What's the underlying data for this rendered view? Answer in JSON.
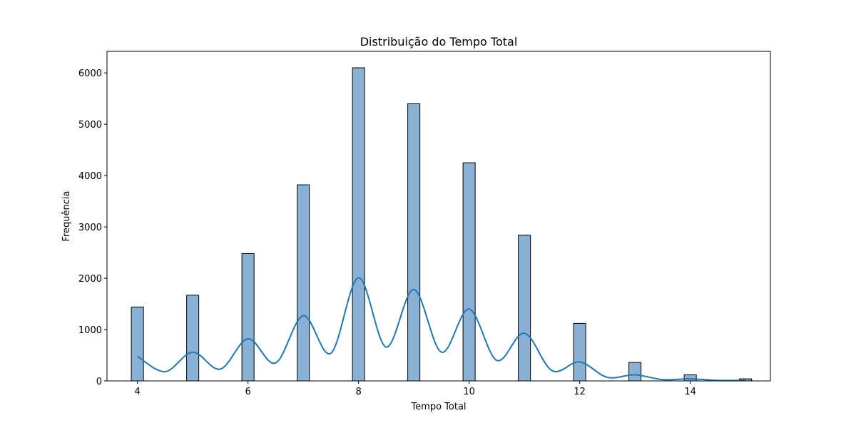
{
  "chart_data": {
    "type": "bar",
    "subtype": "histogram-with-kde",
    "title": "Distribuição do Tempo Total",
    "xlabel": "Tempo Total",
    "ylabel": "Frequência",
    "xlim": [
      3.45,
      15.45
    ],
    "ylim": [
      0,
      6420
    ],
    "x_ticks": [
      4,
      6,
      8,
      10,
      12,
      14
    ],
    "y_ticks": [
      0,
      1000,
      2000,
      3000,
      4000,
      5000,
      6000
    ],
    "bar_width": 0.22,
    "bars": [
      {
        "x": 4,
        "value": 1440
      },
      {
        "x": 5,
        "value": 1670
      },
      {
        "x": 6,
        "value": 2480
      },
      {
        "x": 7,
        "value": 3820
      },
      {
        "x": 8,
        "value": 6100
      },
      {
        "x": 9,
        "value": 5400
      },
      {
        "x": 10,
        "value": 4250
      },
      {
        "x": 11,
        "value": 2840
      },
      {
        "x": 12,
        "value": 1120
      },
      {
        "x": 13,
        "value": 360
      },
      {
        "x": 14,
        "value": 120
      },
      {
        "x": 15,
        "value": 40
      }
    ],
    "kde_peaks": [
      {
        "x": 4,
        "y": 480
      },
      {
        "x": 5,
        "y": 560
      },
      {
        "x": 6,
        "y": 820
      },
      {
        "x": 7,
        "y": 1270
      },
      {
        "x": 8,
        "y": 2010
      },
      {
        "x": 9,
        "y": 1780
      },
      {
        "x": 10,
        "y": 1400
      },
      {
        "x": 11,
        "y": 930
      },
      {
        "x": 12,
        "y": 370
      },
      {
        "x": 13,
        "y": 120
      },
      {
        "x": 14,
        "y": 40
      },
      {
        "x": 15,
        "y": 10
      }
    ],
    "kde_troughs": [
      {
        "x": 4.5,
        "y": 180
      },
      {
        "x": 5.5,
        "y": 230
      },
      {
        "x": 6.5,
        "y": 350
      },
      {
        "x": 7.5,
        "y": 540
      },
      {
        "x": 8.5,
        "y": 660
      },
      {
        "x": 9.5,
        "y": 560
      },
      {
        "x": 10.5,
        "y": 400
      },
      {
        "x": 11.5,
        "y": 200
      },
      {
        "x": 12.5,
        "y": 70
      },
      {
        "x": 13.5,
        "y": 25
      },
      {
        "x": 14.5,
        "y": 10
      }
    ],
    "grid": false,
    "colors": {
      "bar_fill": "#8ab1d4",
      "bar_edge": "#000000",
      "kde_line": "#1f77b4",
      "axes": "#000000"
    }
  }
}
